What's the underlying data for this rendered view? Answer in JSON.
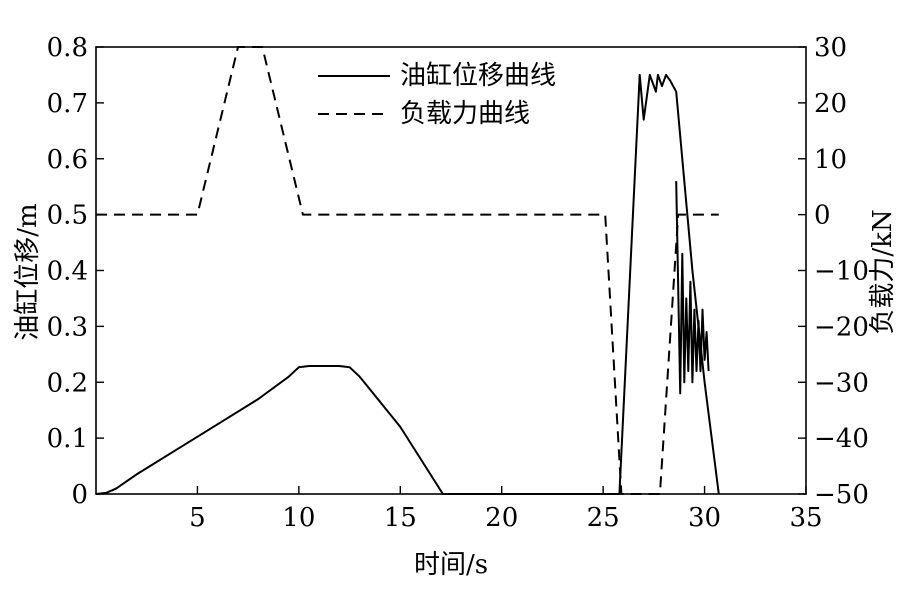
{
  "chart_data": {
    "type": "line",
    "title": "",
    "xlabel": "时间/s",
    "ylabel_left": "油缸位移/m",
    "ylabel_right": "负载力/kN",
    "xlim": [
      0,
      35
    ],
    "ylim_left": [
      0,
      0.8
    ],
    "ylim_right": [
      -50,
      30
    ],
    "x_ticks": [
      5,
      10,
      15,
      20,
      25,
      30,
      35
    ],
    "y_left_ticks": [
      "0",
      "0.1",
      "0.2",
      "0.3",
      "0.4",
      "0.5",
      "0.6",
      "0.7",
      "0.8"
    ],
    "y_right_ticks": [
      "-50",
      "-40",
      "-30",
      "-20",
      "-10",
      "0",
      "10",
      "20",
      "30"
    ],
    "grid": false,
    "legend_position": "top-center",
    "series": [
      {
        "name": "油缸位移曲线",
        "axis": "left",
        "style": "solid",
        "x": [
          0,
          0.5,
          1,
          2,
          4,
          6,
          8,
          9.5,
          10,
          10.5,
          12,
          12.5,
          13,
          15,
          17.1,
          25.8,
          26.8,
          27.0,
          27.3,
          27.6,
          27.7,
          27.9,
          28.1,
          28.3,
          28.6,
          29.4,
          30.0,
          30.7
        ],
        "y": [
          0,
          0.002,
          0.01,
          0.035,
          0.08,
          0.125,
          0.17,
          0.21,
          0.227,
          0.229,
          0.229,
          0.227,
          0.21,
          0.12,
          0,
          0,
          0.75,
          0.67,
          0.75,
          0.72,
          0.75,
          0.73,
          0.75,
          0.74,
          0.72,
          0.4,
          0.2,
          0
        ]
      },
      {
        "name": "负载力曲线",
        "axis": "right",
        "style": "dashed",
        "x": [
          0,
          5.0,
          7.0,
          7.8,
          8.2,
          10.2,
          25.1,
          25.9,
          27.8,
          28.7,
          29.0,
          29.1,
          29.3,
          29.5,
          29.7,
          29.9,
          30.1,
          30.3,
          30.5,
          30.7
        ],
        "y": [
          0,
          0,
          30,
          30,
          30,
          0,
          0,
          -50,
          -50,
          0,
          0,
          0,
          0,
          0,
          0,
          0,
          0,
          0,
          0,
          0
        ]
      },
      {
        "name": "",
        "axis": "left",
        "style": "solid-oscillation",
        "x": [
          28.6,
          28.8,
          28.9,
          29.0,
          29.1,
          29.2,
          29.3,
          29.4,
          29.5,
          29.6,
          29.7,
          29.8,
          29.9,
          30.0,
          30.1,
          30.2
        ],
        "y": [
          0.56,
          0.18,
          0.43,
          0.2,
          0.35,
          0.22,
          0.38,
          0.2,
          0.33,
          0.22,
          0.31,
          0.22,
          0.33,
          0.24,
          0.29,
          0.22
        ]
      }
    ]
  }
}
